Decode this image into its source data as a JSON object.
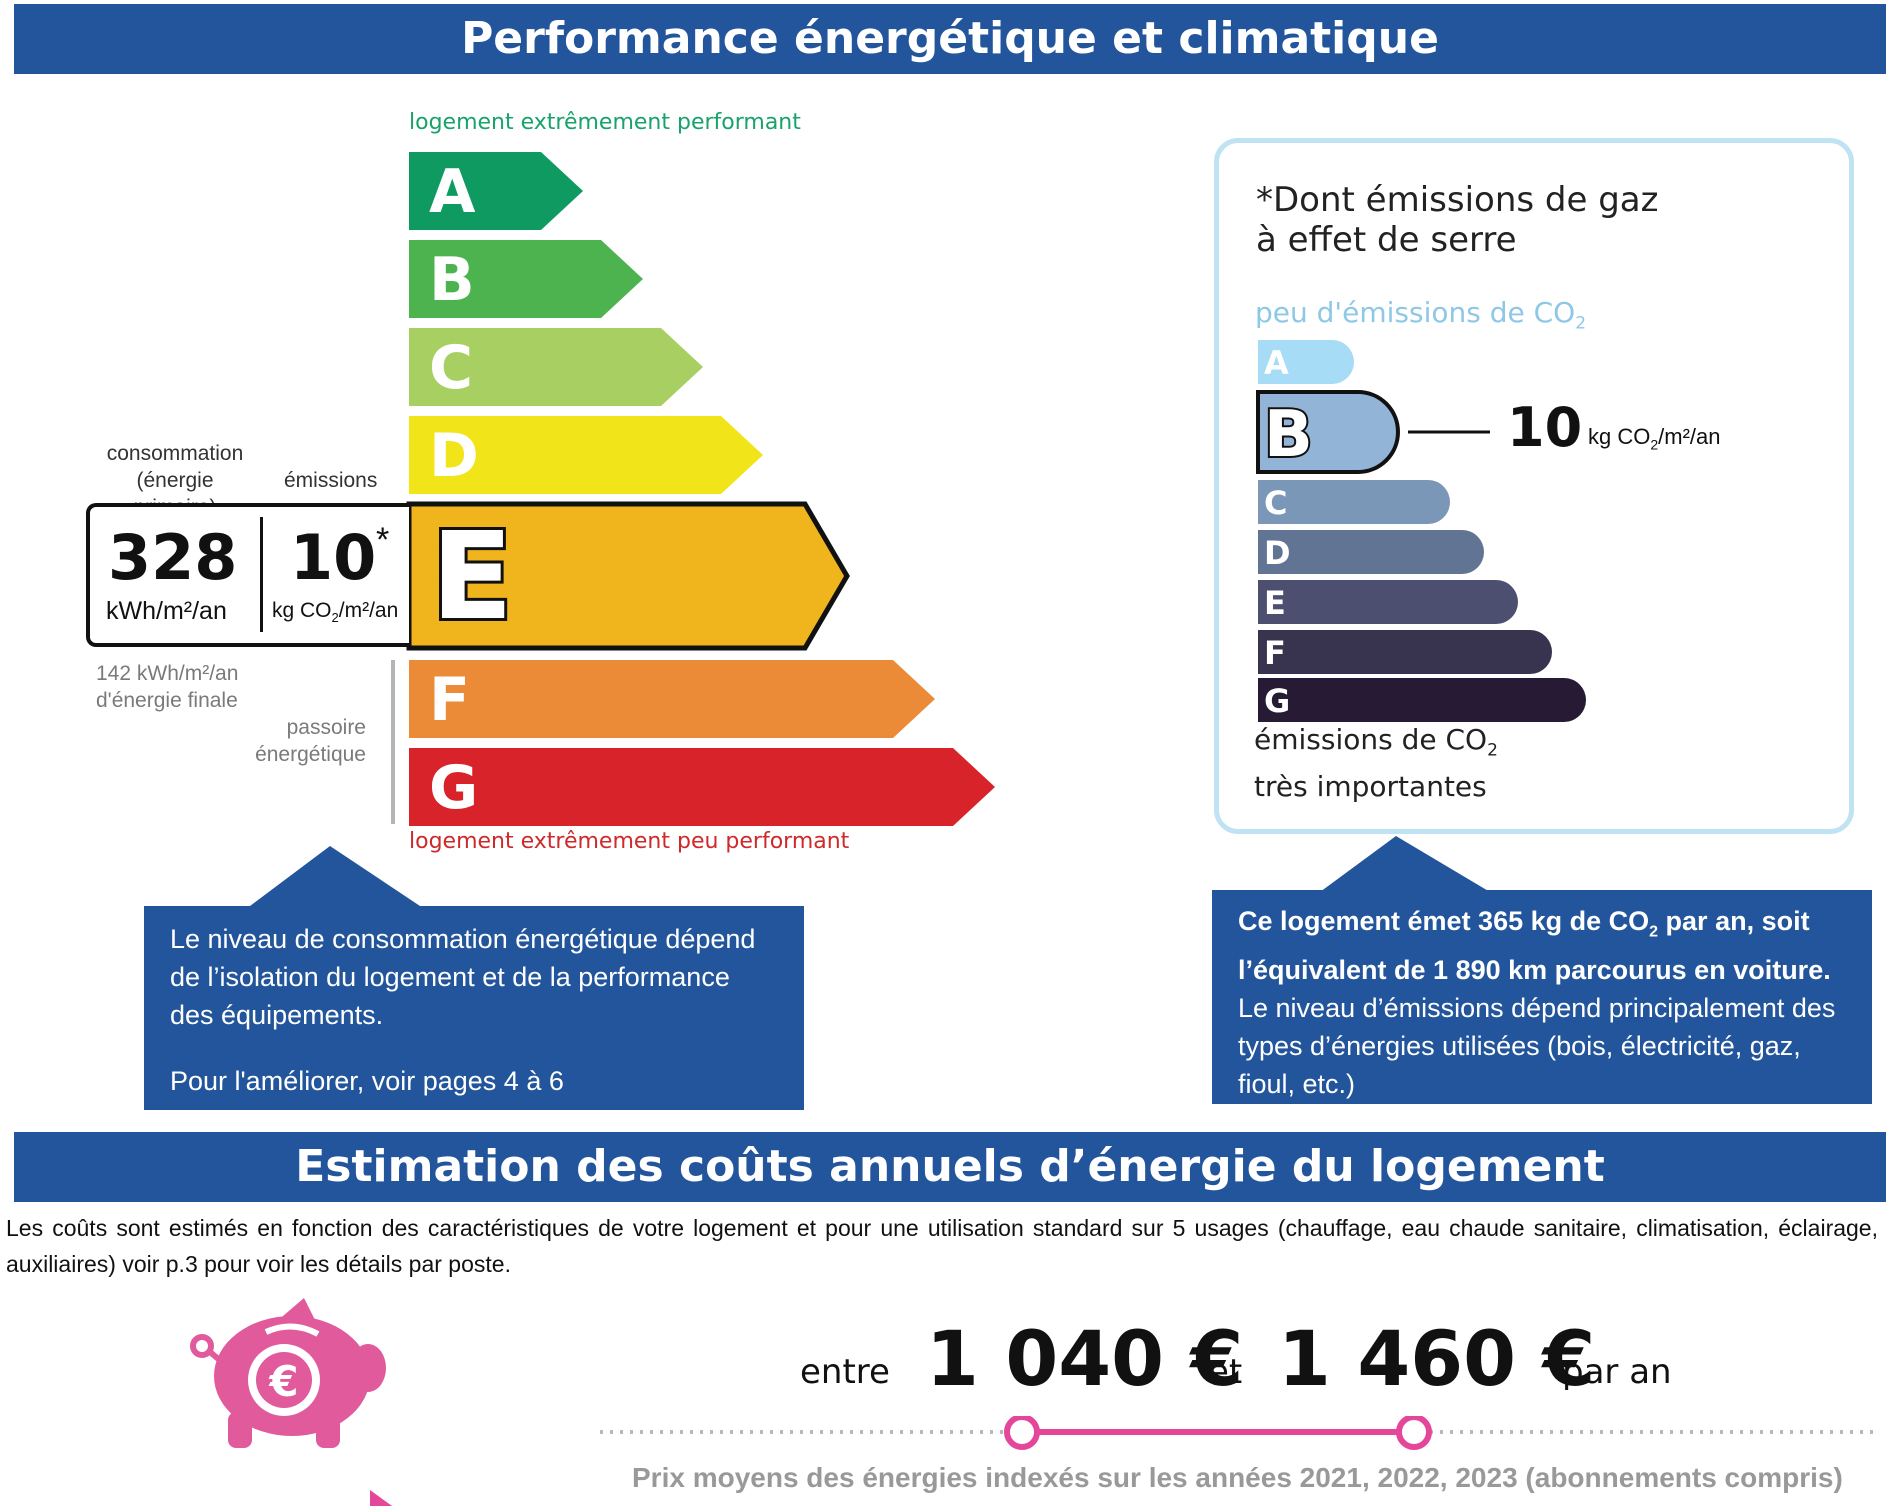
{
  "header": {
    "title": "Performance énergétique et climatique"
  },
  "dpe": {
    "top_label": "logement extrêmement performant",
    "bottom_label": "logement extrêmement peu performant",
    "classes": [
      {
        "letter": "A",
        "color": "#0e9a60"
      },
      {
        "letter": "B",
        "color": "#4db34f"
      },
      {
        "letter": "C",
        "color": "#a7cf61"
      },
      {
        "letter": "D",
        "color": "#f1e419"
      },
      {
        "letter": "E",
        "color": "#f0b41c"
      },
      {
        "letter": "F",
        "color": "#eb8a37"
      },
      {
        "letter": "G",
        "color": "#d8232a"
      }
    ],
    "current_class": "E",
    "consumption_label_1": "consommation",
    "consumption_label_2": "(énergie primaire)",
    "emissions_label": "émissions",
    "consumption_value": "328",
    "consumption_unit": "kWh/m²/an",
    "emissions_value": "10",
    "emissions_star": "*",
    "emissions_unit_pre": "kg CO",
    "emissions_unit_sub": "2",
    "emissions_unit_post": "/m²/an",
    "final_energy_1": "142 kWh/m²/an",
    "final_energy_2": "d'énergie finale",
    "passoire_1": "passoire",
    "passoire_2": "énergétique"
  },
  "ges": {
    "star": "*",
    "title_1": "Dont émissions de gaz",
    "title_2": "à effet de serre",
    "top_label_pre": "peu d'émissions de CO",
    "top_label_sub": "2",
    "classes": [
      {
        "letter": "A",
        "color": "#a6dcf6"
      },
      {
        "letter": "B",
        "color": "#92b4d6"
      },
      {
        "letter": "C",
        "color": "#7a97b8"
      },
      {
        "letter": "D",
        "color": "#627494"
      },
      {
        "letter": "E",
        "color": "#4c4f70"
      },
      {
        "letter": "F",
        "color": "#38334f"
      },
      {
        "letter": "G",
        "color": "#261a34"
      }
    ],
    "current_class": "B",
    "value": "10",
    "unit_pre": "kg CO",
    "unit_sub": "2",
    "unit_post": "/m²/an",
    "bottom_label_1_pre": "émissions de CO",
    "bottom_label_1_sub": "2",
    "bottom_label_2": "très importantes"
  },
  "info_left": {
    "text_1": "Le niveau de consommation énergétique dépend de l’isolation du logement et de la performance des équipements.",
    "text_2": "Pour l'améliorer, voir pages 4 à 6"
  },
  "info_right": {
    "bold_1": "Ce logement émet 365 kg de CO",
    "bold_sub": "2",
    "bold_2": " par an, soit l’équivalent de 1 890 km parcourus en voiture.",
    "text": "Le niveau d’émissions dépend principalement des types d’énergies utilisées (bois, électricité, gaz, fioul, etc.)"
  },
  "costs": {
    "title": "Estimation des coûts annuels d’énergie du logement",
    "description": "Les coûts sont estimés en fonction des caractéristiques de votre logement et pour une utilisation standard sur 5 usages (chauffage, eau chaude sanitaire, climatisation, éclairage, auxiliaires) voir p.3 pour voir les détails par poste.",
    "between": "entre",
    "min": "1 040 €",
    "and": "et",
    "max": "1 460 €",
    "per_year": "par an",
    "note": "Prix moyens des énergies indexés sur les années 2021, 2022, 2023 (abonnements compris)",
    "accent_color": "#e4479a",
    "piggy_color": "#e05a9c"
  }
}
